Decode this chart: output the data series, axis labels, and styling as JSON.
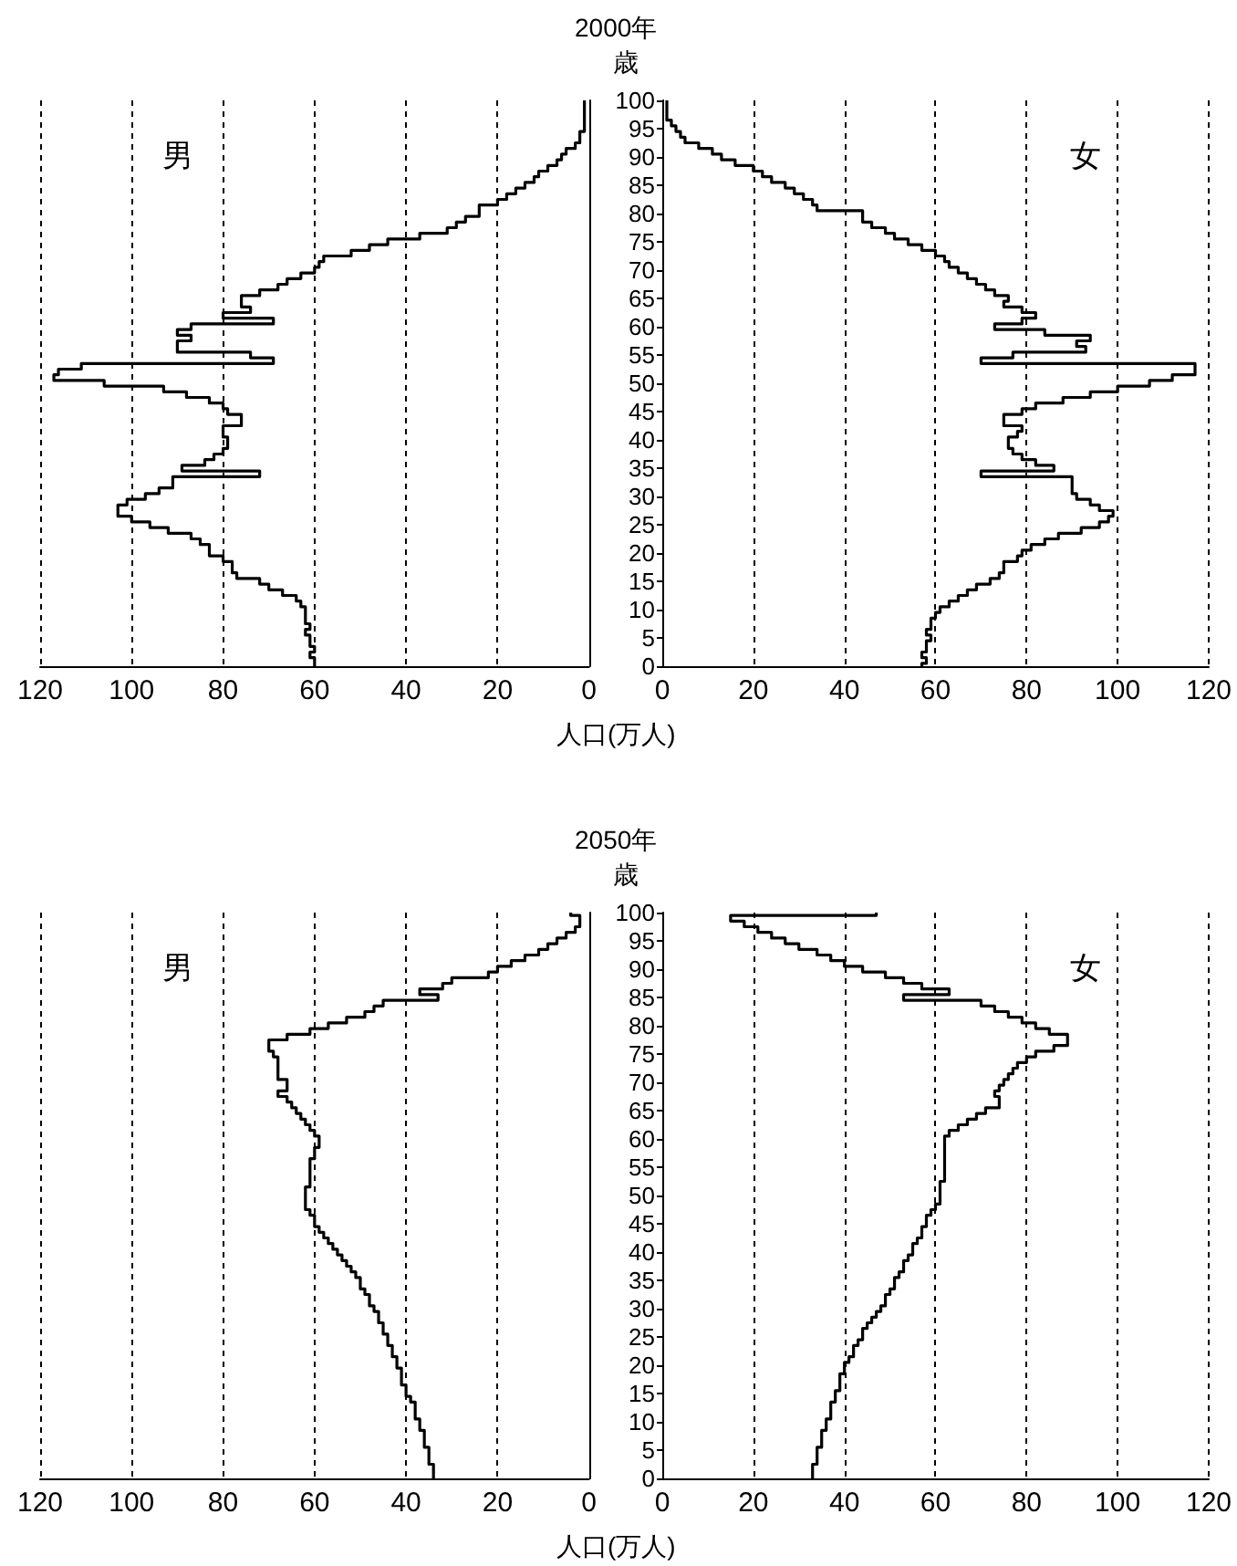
{
  "chart_data": [
    {
      "type": "step",
      "orientation": "horizontal",
      "color": "#000000",
      "grid": "x",
      "tick_labels": "x",
      "annotations": [
        "男"
      ],
      "xlim": [
        120,
        0
      ],
      "xticks": [
        0,
        20,
        40,
        60,
        80,
        100,
        120
      ],
      "categories": [
        "100",
        null,
        null,
        null,
        null,
        "95",
        null,
        null,
        null,
        null,
        "90",
        null,
        null,
        null,
        null,
        "85",
        null,
        null,
        null,
        null,
        "80",
        null,
        null,
        null,
        null,
        "75",
        null,
        null,
        null,
        null,
        "70",
        null,
        null,
        null,
        null,
        "65",
        null,
        null,
        null,
        null,
        "60",
        null,
        null,
        null,
        null,
        "55",
        null,
        null,
        null,
        null,
        "50",
        null,
        null,
        null,
        null,
        "45",
        null,
        null,
        null,
        null,
        "40",
        null,
        null,
        null,
        null,
        "35",
        null,
        null,
        null,
        null,
        "30",
        null,
        null,
        null,
        null,
        "25",
        null,
        null,
        null,
        null,
        "20",
        null,
        null,
        null,
        null,
        "15",
        null,
        null,
        null,
        null,
        "10",
        null,
        null,
        null,
        null,
        "5",
        null,
        null,
        null,
        null,
        "0"
      ],
      "values": [
        1,
        1,
        1,
        1,
        1,
        1,
        2,
        2,
        3,
        5,
        6,
        7,
        9,
        11,
        12,
        14,
        16,
        18,
        20,
        24,
        24,
        27,
        29,
        31,
        37,
        44,
        48,
        52,
        58,
        59,
        60,
        63,
        66,
        68,
        72,
        76,
        76,
        74,
        80,
        69,
        87,
        90,
        87,
        90,
        90,
        74,
        69,
        111,
        116,
        117,
        106,
        93,
        88,
        83,
        80,
        79,
        76,
        76,
        80,
        80,
        79,
        79,
        80,
        82,
        84,
        89,
        72,
        91,
        91,
        94,
        97,
        101,
        103,
        103,
        100,
        96,
        92,
        87,
        85,
        83,
        83,
        80,
        78,
        78,
        77,
        72,
        70,
        67,
        64,
        63,
        62,
        62,
        62,
        61,
        62,
        61,
        61,
        60,
        61,
        60,
        60
      ]
    },
    {
      "type": "step",
      "orientation": "horizontal",
      "color": "#000000",
      "grid": "x",
      "title": "2000年",
      "ylabel": "歳",
      "xlabel": "人口(万人)",
      "annotations": [
        "女"
      ],
      "xlim": [
        0,
        120
      ],
      "xticks": [
        0,
        20,
        40,
        60,
        80,
        100,
        120
      ],
      "categories": [
        "100",
        null,
        null,
        null,
        null,
        "95",
        null,
        null,
        null,
        null,
        "90",
        null,
        null,
        null,
        null,
        "85",
        null,
        null,
        null,
        null,
        "80",
        null,
        null,
        null,
        null,
        "75",
        null,
        null,
        null,
        null,
        "70",
        null,
        null,
        null,
        null,
        "65",
        null,
        null,
        null,
        null,
        "60",
        null,
        null,
        null,
        null,
        "55",
        null,
        null,
        null,
        null,
        "50",
        null,
        null,
        null,
        null,
        "45",
        null,
        null,
        null,
        null,
        "40",
        null,
        null,
        null,
        null,
        "35",
        null,
        null,
        null,
        null,
        "30",
        null,
        null,
        null,
        null,
        "25",
        null,
        null,
        null,
        null,
        "20",
        null,
        null,
        null,
        null,
        "15",
        null,
        null,
        null,
        null,
        "10",
        null,
        null,
        null,
        null,
        "5",
        null,
        null,
        null,
        null,
        "0"
      ],
      "values": [
        1,
        1,
        1,
        1,
        2,
        3,
        4,
        5,
        8,
        11,
        13,
        16,
        20,
        22,
        24,
        27,
        29,
        31,
        33,
        34,
        44,
        44,
        46,
        49,
        51,
        54,
        57,
        60,
        62,
        63,
        65,
        67,
        69,
        71,
        73,
        76,
        75,
        79,
        82,
        79,
        73,
        84,
        94,
        91,
        93,
        77,
        70,
        117,
        117,
        112,
        107,
        100,
        94,
        88,
        82,
        79,
        75,
        75,
        79,
        78,
        76,
        76,
        77,
        79,
        82,
        86,
        70,
        90,
        90,
        90,
        91,
        94,
        96,
        99,
        98,
        96,
        92,
        87,
        84,
        81,
        79,
        78,
        75,
        75,
        74,
        72,
        69,
        67,
        65,
        63,
        61,
        60,
        59,
        59,
        58,
        59,
        58,
        58,
        57,
        58,
        57
      ]
    },
    {
      "type": "step",
      "orientation": "horizontal",
      "color": "#000000",
      "grid": "x",
      "tick_labels": "x",
      "annotations": [
        "男"
      ],
      "xlim": [
        120,
        0
      ],
      "xticks": [
        0,
        20,
        40,
        60,
        80,
        100,
        120
      ],
      "categories": [
        "100",
        null,
        null,
        null,
        null,
        "95",
        null,
        null,
        null,
        null,
        "90",
        null,
        null,
        null,
        null,
        "85",
        null,
        null,
        null,
        null,
        "80",
        null,
        null,
        null,
        null,
        "75",
        null,
        null,
        null,
        null,
        "70",
        null,
        null,
        null,
        null,
        "65",
        null,
        null,
        null,
        null,
        "60",
        null,
        null,
        null,
        null,
        "55",
        null,
        null,
        null,
        null,
        "50",
        null,
        null,
        null,
        null,
        "45",
        null,
        null,
        null,
        null,
        "40",
        null,
        null,
        null,
        null,
        "35",
        null,
        null,
        null,
        null,
        "30",
        null,
        null,
        null,
        null,
        "25",
        null,
        null,
        null,
        null,
        "20",
        null,
        null,
        null,
        null,
        "15",
        null,
        null,
        null,
        null,
        "10",
        null,
        null,
        null,
        null,
        "5",
        null,
        null,
        null,
        null,
        "0"
      ],
      "values": [
        4,
        2,
        2,
        3,
        5,
        7,
        9,
        11,
        14,
        17,
        20,
        22,
        30,
        32,
        37,
        33,
        45,
        47,
        49,
        53,
        57,
        61,
        66,
        70,
        70,
        69,
        68,
        68,
        68,
        68,
        66,
        66,
        68,
        66,
        65,
        64,
        63,
        62,
        61,
        60,
        59,
        59,
        60,
        60,
        61,
        61,
        61,
        61,
        61,
        62,
        62,
        62,
        62,
        61,
        60,
        60,
        59,
        58,
        57,
        56,
        55,
        54,
        53,
        52,
        51,
        50,
        50,
        49,
        48,
        48,
        47,
        46,
        46,
        45,
        45,
        44,
        44,
        43,
        43,
        42,
        42,
        41,
        41,
        41,
        40,
        40,
        39,
        38,
        38,
        38,
        37,
        37,
        36,
        36,
        36,
        35,
        35,
        35,
        34,
        34,
        34
      ]
    },
    {
      "type": "step",
      "orientation": "horizontal",
      "color": "#000000",
      "grid": "x",
      "title": "2050年",
      "ylabel": "歳",
      "xlabel": "人口(万人)",
      "annotations": [
        "女"
      ],
      "xlim": [
        0,
        120
      ],
      "xticks": [
        0,
        20,
        40,
        60,
        80,
        100,
        120
      ],
      "categories": [
        "100",
        null,
        null,
        null,
        null,
        "95",
        null,
        null,
        null,
        null,
        "90",
        null,
        null,
        null,
        null,
        "85",
        null,
        null,
        null,
        null,
        "80",
        null,
        null,
        null,
        null,
        "75",
        null,
        null,
        null,
        null,
        "70",
        null,
        null,
        null,
        null,
        "65",
        null,
        null,
        null,
        null,
        "60",
        null,
        null,
        null,
        null,
        "55",
        null,
        null,
        null,
        null,
        "50",
        null,
        null,
        null,
        null,
        "45",
        null,
        null,
        null,
        null,
        "40",
        null,
        null,
        null,
        null,
        "35",
        null,
        null,
        null,
        null,
        "30",
        null,
        null,
        null,
        null,
        "25",
        null,
        null,
        null,
        null,
        "20",
        null,
        null,
        null,
        null,
        "15",
        null,
        null,
        null,
        null,
        "10",
        null,
        null,
        null,
        null,
        "5",
        null,
        null,
        null,
        null,
        "0"
      ],
      "values": [
        47,
        15,
        18,
        21,
        24,
        27,
        30,
        34,
        37,
        40,
        44,
        49,
        53,
        57,
        63,
        53,
        70,
        73,
        76,
        79,
        82,
        85,
        89,
        89,
        86,
        82,
        80,
        78,
        77,
        76,
        75,
        74,
        73,
        74,
        74,
        71,
        69,
        67,
        65,
        63,
        62,
        62,
        62,
        62,
        62,
        62,
        62,
        62,
        61,
        61,
        61,
        61,
        60,
        59,
        58,
        58,
        57,
        57,
        56,
        55,
        55,
        54,
        53,
        53,
        52,
        51,
        51,
        50,
        49,
        49,
        48,
        47,
        46,
        45,
        44,
        44,
        43,
        42,
        42,
        41,
        40,
        40,
        39,
        39,
        39,
        38,
        38,
        37,
        37,
        37,
        36,
        36,
        35,
        35,
        35,
        34,
        34,
        34,
        33,
        33,
        33
      ]
    }
  ]
}
